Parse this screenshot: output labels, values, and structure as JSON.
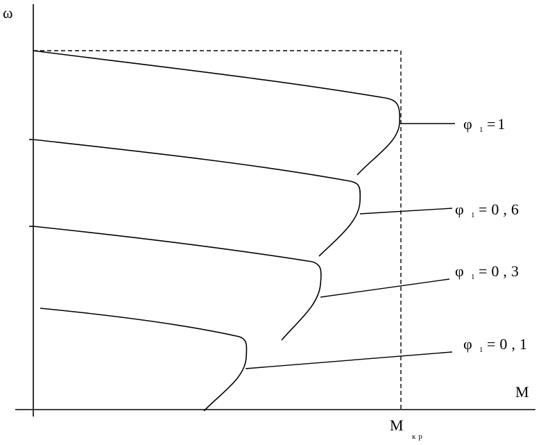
{
  "axes": {
    "y_label": "ω",
    "x_label": "M",
    "critical_moment": {
      "main": "M",
      "sub": "кр"
    }
  },
  "curves": [
    {
      "id": "phi-1",
      "label": {
        "sym": "φ",
        "sub": "1",
        "rest": "=1"
      }
    },
    {
      "id": "phi-0-6",
      "label": {
        "sym": "φ",
        "sub": "1",
        "rest": "=0,6"
      }
    },
    {
      "id": "phi-0-3",
      "label": {
        "sym": "φ",
        "sub": "1",
        "rest": "=0,3"
      }
    },
    {
      "id": "phi-0-1",
      "label": {
        "sym": "φ",
        "sub": "1",
        "rest": "=0,1"
      }
    }
  ]
}
